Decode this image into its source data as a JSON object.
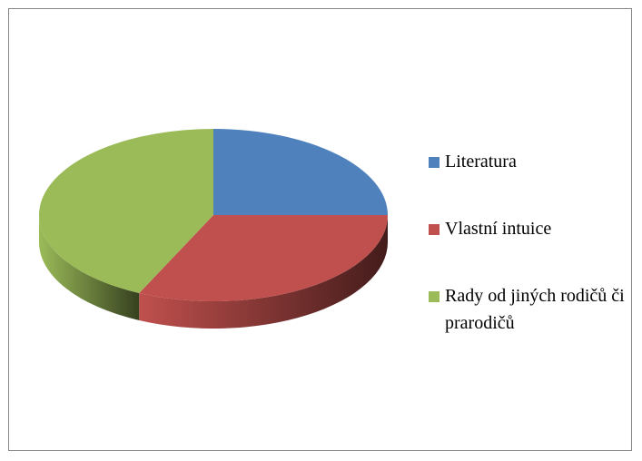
{
  "chart_data": {
    "type": "pie",
    "categories": [
      "Literatura",
      "Vlastní intuice",
      "Rady od jiných rodičů či prarodičů"
    ],
    "values": [
      25,
      32,
      43
    ],
    "colors": [
      "#4f81bd",
      "#c0504d",
      "#9bbb59"
    ],
    "legend": "right"
  }
}
